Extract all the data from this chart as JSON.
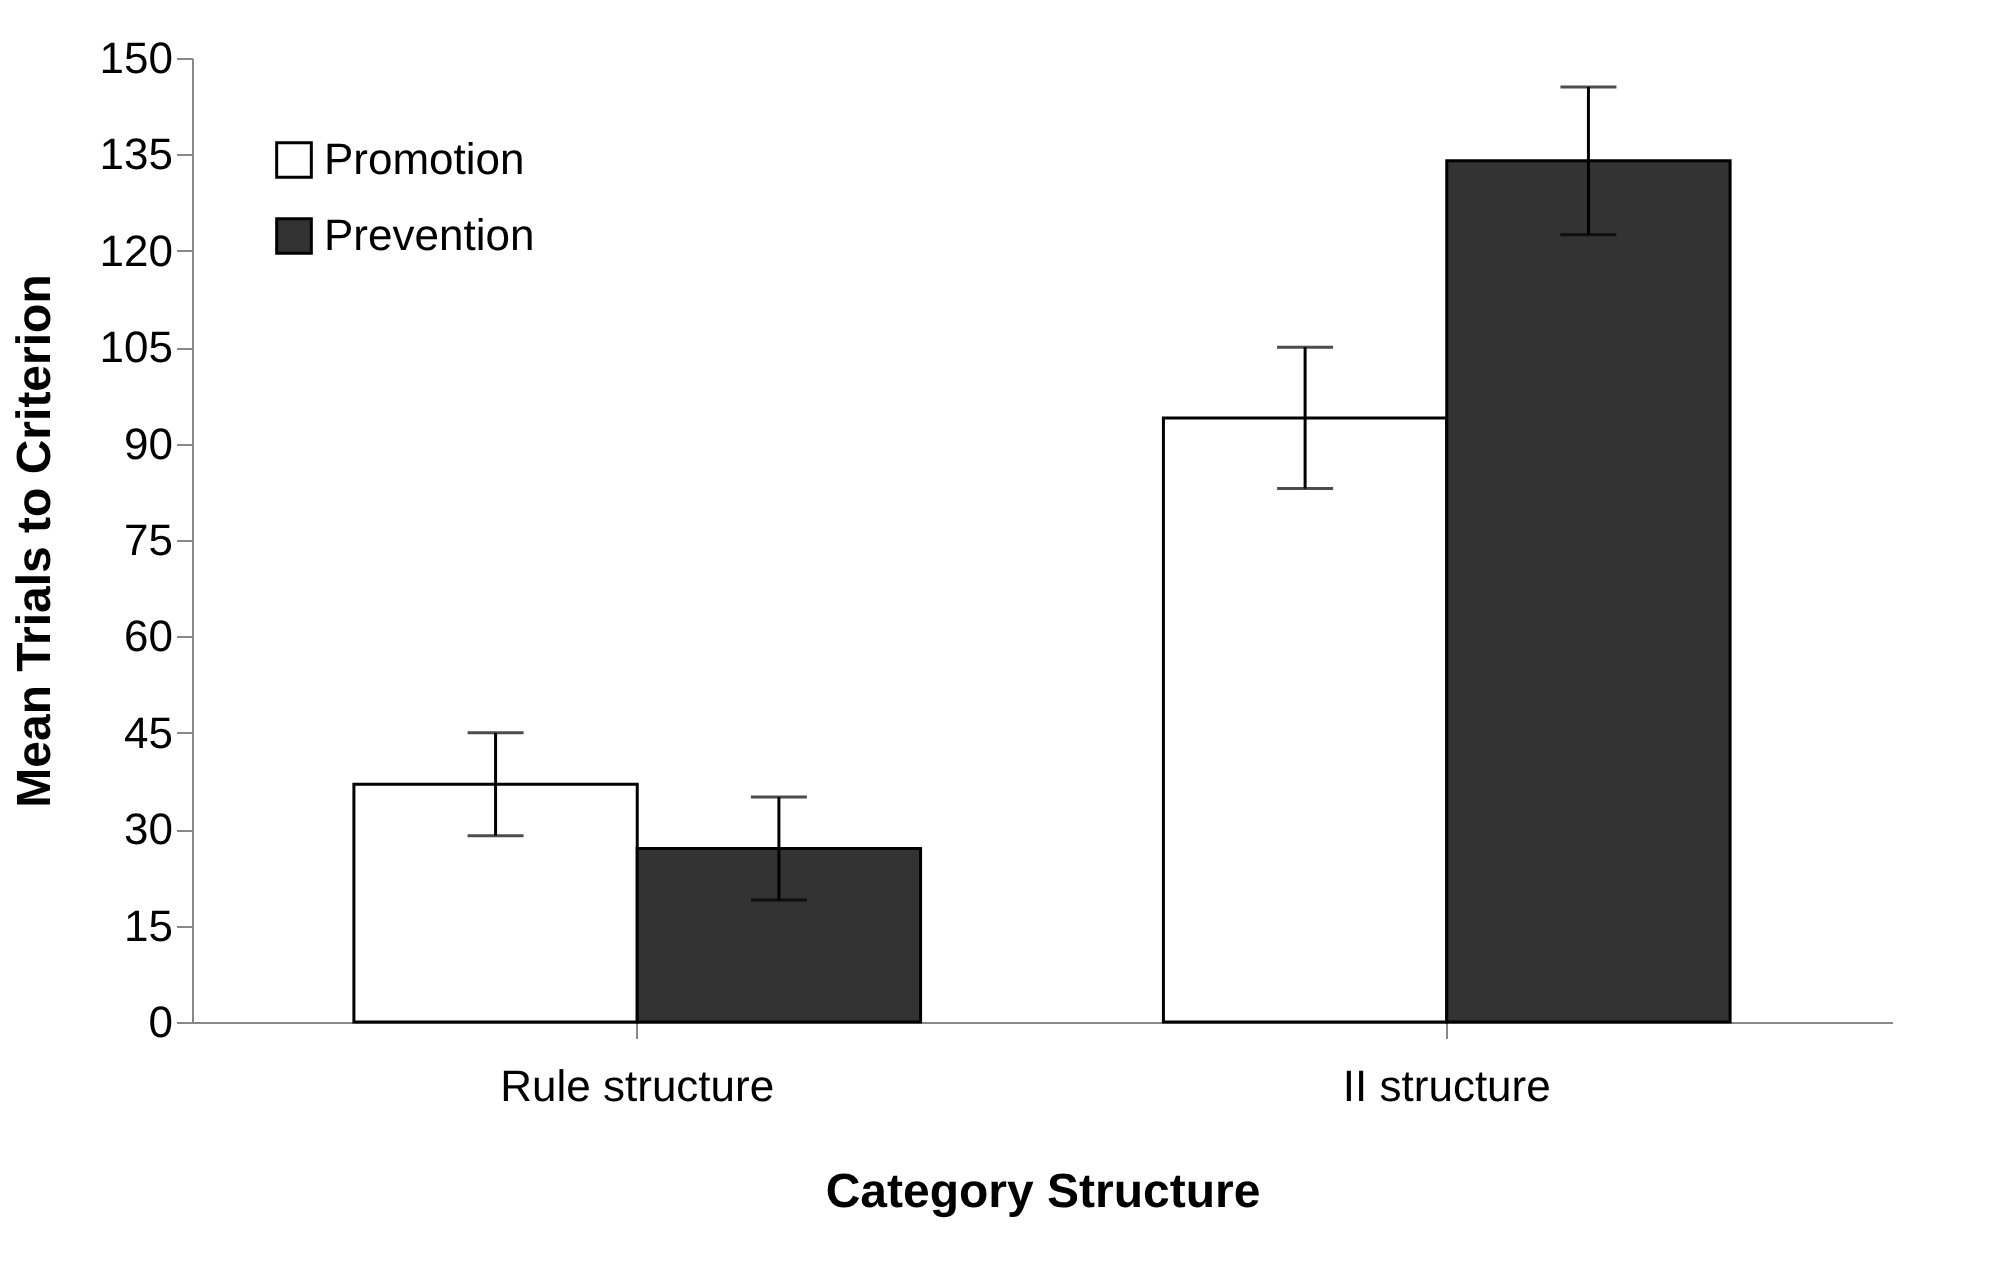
{
  "chart_data": {
    "type": "bar",
    "xlabel": "Category Structure",
    "ylabel": "Mean Trials to Criterion",
    "categories": [
      "Rule structure",
      "II structure"
    ],
    "series": [
      {
        "name": "Promotion",
        "color": "#ffffff",
        "values": [
          37,
          94
        ],
        "errors": [
          8,
          11
        ]
      },
      {
        "name": "Prevention",
        "color": "#333333",
        "values": [
          27,
          134
        ],
        "errors": [
          8,
          11.5
        ]
      }
    ],
    "ylim": [
      0,
      150
    ],
    "yticks": [
      0,
      15,
      30,
      45,
      60,
      75,
      90,
      105,
      120,
      135,
      150
    ],
    "grid": false,
    "legend": "top left"
  }
}
